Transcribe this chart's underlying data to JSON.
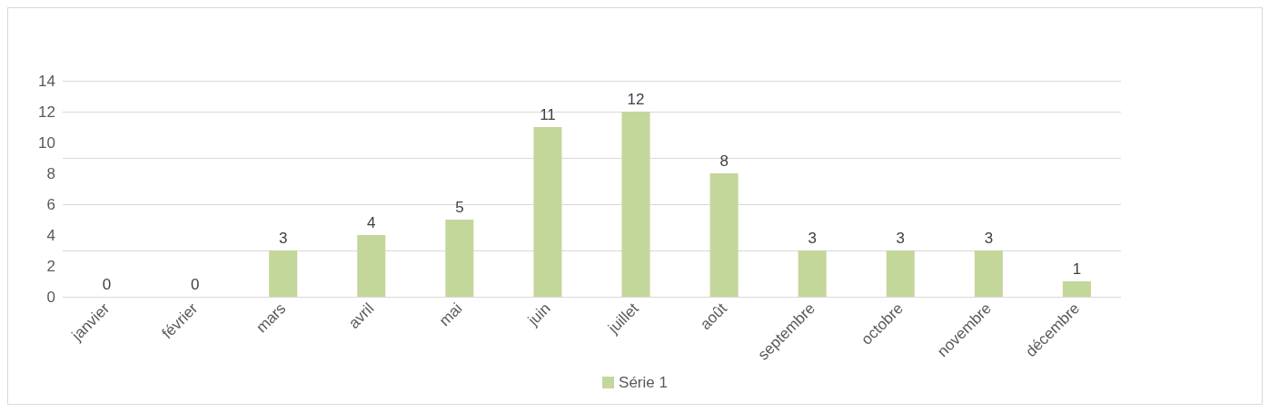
{
  "chart_data": {
    "type": "bar",
    "categories": [
      "janvier",
      "février",
      "mars",
      "avril",
      "mai",
      "juin",
      "juillet",
      "août",
      "septembre",
      "octobre",
      "novembre",
      "décembre"
    ],
    "series": [
      {
        "name": "Série 1",
        "color": "#c4d79b",
        "values": [
          0,
          0,
          3,
          4,
          5,
          11,
          12,
          8,
          3,
          3,
          3,
          1
        ]
      }
    ],
    "ylim": [
      0,
      14
    ],
    "yticks": [
      0,
      2,
      4,
      6,
      8,
      10,
      12,
      14
    ],
    "grid": "y",
    "legend": "bottom",
    "data_labels": true
  }
}
